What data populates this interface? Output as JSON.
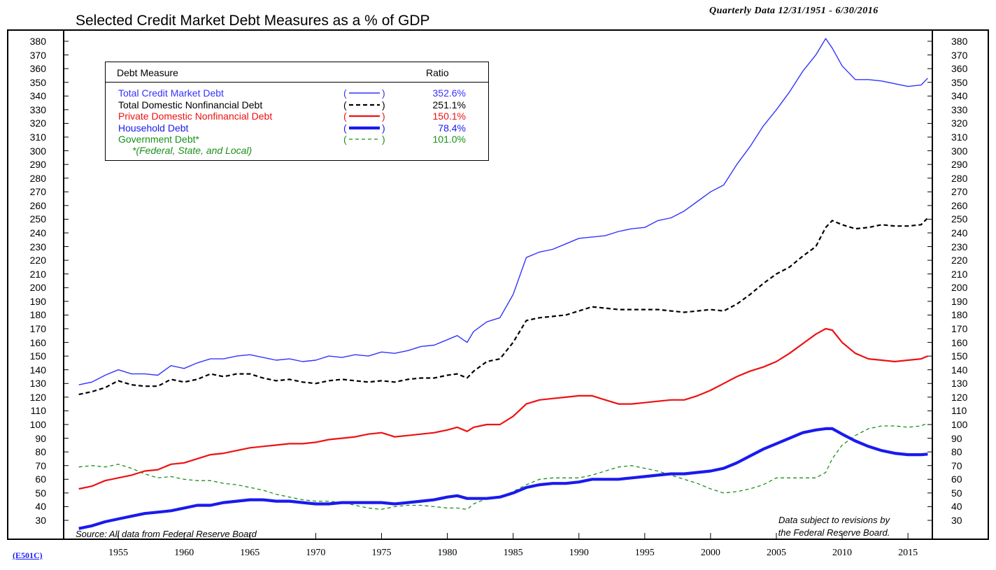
{
  "chart_data": {
    "type": "line",
    "title": "Selected Credit Market Debt Measures as a % of GDP",
    "subtitle": "Quarterly Data 12/31/1951 - 6/30/2016",
    "xlabel": "",
    "ylabel": "",
    "ylim": [
      20,
      390
    ],
    "xlim": [
      1950.9,
      2016.8
    ],
    "yticks": [
      30,
      40,
      50,
      60,
      70,
      80,
      90,
      100,
      110,
      120,
      130,
      140,
      150,
      160,
      170,
      180,
      190,
      200,
      210,
      220,
      230,
      240,
      250,
      260,
      270,
      280,
      290,
      300,
      310,
      320,
      330,
      340,
      350,
      360,
      370,
      380
    ],
    "xticks": [
      1955,
      1960,
      1965,
      1970,
      1975,
      1980,
      1985,
      1990,
      1995,
      2000,
      2005,
      2010,
      2015
    ],
    "grid": false,
    "legend_position": "top-left",
    "legend_header": {
      "measure": "Debt Measure",
      "ratio": "Ratio"
    },
    "legend_note": "*(Federal, State, and Local)",
    "series": [
      {
        "name": "Total Credit Market Debt",
        "color": "#3333ff",
        "style": "solid-thin",
        "ratio": "352.6%",
        "x": [
          1952,
          1953,
          1954,
          1955,
          1956,
          1957,
          1958,
          1959,
          1960,
          1961,
          1962,
          1963,
          1964,
          1965,
          1966,
          1967,
          1968,
          1969,
          1970,
          1971,
          1972,
          1973,
          1974,
          1975,
          1976,
          1977,
          1978,
          1979,
          1980,
          1980.75,
          1981.5,
          1982,
          1983,
          1984,
          1985,
          1986,
          1987,
          1988,
          1989,
          1990,
          1991,
          1992,
          1993,
          1994,
          1995,
          1996,
          1997,
          1998,
          1999,
          2000,
          2001,
          2002,
          2003,
          2004,
          2005,
          2006,
          2007,
          2008,
          2008.75,
          2009.25,
          2010,
          2011,
          2012,
          2013,
          2014,
          2015,
          2016,
          2016.5
        ],
        "y": [
          129,
          131,
          136,
          140,
          137,
          137,
          136,
          143,
          141,
          145,
          148,
          148,
          150,
          151,
          149,
          147,
          148,
          146,
          147,
          150,
          149,
          151,
          150,
          153,
          152,
          154,
          157,
          158,
          162,
          165,
          160,
          168,
          175,
          178,
          195,
          222,
          226,
          228,
          232,
          236,
          237,
          238,
          241,
          243,
          244,
          249,
          251,
          256,
          263,
          270,
          275,
          290,
          303,
          318,
          330,
          343,
          358,
          370,
          382,
          375,
          362,
          352,
          352,
          351,
          349,
          347,
          348,
          353
        ]
      },
      {
        "name": "Total Domestic Nonfinancial Debt",
        "color": "#000000",
        "style": "dashed",
        "ratio": "251.1%",
        "x": [
          1952,
          1953,
          1954,
          1955,
          1956,
          1957,
          1958,
          1959,
          1960,
          1961,
          1962,
          1963,
          1964,
          1965,
          1966,
          1967,
          1968,
          1969,
          1970,
          1971,
          1972,
          1973,
          1974,
          1975,
          1976,
          1977,
          1978,
          1979,
          1980,
          1980.75,
          1981.5,
          1982,
          1983,
          1984,
          1985,
          1986,
          1987,
          1988,
          1989,
          1990,
          1991,
          1992,
          1993,
          1994,
          1995,
          1996,
          1997,
          1998,
          1999,
          2000,
          2001,
          2002,
          2003,
          2004,
          2005,
          2006,
          2007,
          2008,
          2008.75,
          2009.25,
          2010,
          2011,
          2012,
          2013,
          2014,
          2015,
          2016,
          2016.5
        ],
        "y": [
          122,
          124,
          127,
          132,
          129,
          128,
          128,
          133,
          131,
          133,
          137,
          135,
          137,
          137,
          134,
          132,
          133,
          131,
          130,
          132,
          133,
          132,
          131,
          132,
          131,
          133,
          134,
          134,
          136,
          137,
          134,
          139,
          146,
          148,
          160,
          176,
          178,
          179,
          180,
          183,
          186,
          185,
          184,
          184,
          184,
          184,
          183,
          182,
          183,
          184,
          183,
          188,
          195,
          203,
          210,
          215,
          223,
          230,
          244,
          249,
          246,
          243,
          244,
          246,
          245,
          245,
          246,
          251
        ]
      },
      {
        "name": "Private Domestic Nonfinancial Debt",
        "color": "#ee1111",
        "style": "solid",
        "ratio": "150.1%",
        "x": [
          1952,
          1953,
          1954,
          1955,
          1956,
          1957,
          1958,
          1959,
          1960,
          1961,
          1962,
          1963,
          1964,
          1965,
          1966,
          1967,
          1968,
          1969,
          1970,
          1971,
          1972,
          1973,
          1974,
          1975,
          1976,
          1977,
          1978,
          1979,
          1980,
          1980.75,
          1981.5,
          1982,
          1983,
          1984,
          1985,
          1986,
          1987,
          1988,
          1989,
          1990,
          1991,
          1992,
          1993,
          1994,
          1995,
          1996,
          1997,
          1998,
          1999,
          2000,
          2001,
          2002,
          2003,
          2004,
          2005,
          2006,
          2007,
          2008,
          2008.75,
          2009.25,
          2010,
          2011,
          2012,
          2013,
          2014,
          2015,
          2016,
          2016.5
        ],
        "y": [
          53,
          55,
          59,
          61,
          63,
          66,
          67,
          71,
          72,
          75,
          78,
          79,
          81,
          83,
          84,
          85,
          86,
          86,
          87,
          89,
          90,
          91,
          93,
          94,
          91,
          92,
          93,
          94,
          96,
          98,
          95,
          98,
          100,
          100,
          106,
          115,
          118,
          119,
          120,
          121,
          121,
          118,
          115,
          115,
          116,
          117,
          118,
          118,
          121,
          125,
          130,
          135,
          139,
          142,
          146,
          152,
          159,
          166,
          170,
          169,
          160,
          152,
          148,
          147,
          146,
          147,
          148,
          150
        ]
      },
      {
        "name": "Household Debt",
        "color": "#1a1aee",
        "style": "solid-thick",
        "ratio": "78.4%",
        "x": [
          1952,
          1953,
          1954,
          1955,
          1956,
          1957,
          1958,
          1959,
          1960,
          1961,
          1962,
          1963,
          1964,
          1965,
          1966,
          1967,
          1968,
          1969,
          1970,
          1971,
          1972,
          1973,
          1974,
          1975,
          1976,
          1977,
          1978,
          1979,
          1980,
          1980.75,
          1981.5,
          1982,
          1983,
          1984,
          1985,
          1986,
          1987,
          1988,
          1989,
          1990,
          1991,
          1992,
          1993,
          1994,
          1995,
          1996,
          1997,
          1998,
          1999,
          2000,
          2001,
          2002,
          2003,
          2004,
          2005,
          2006,
          2007,
          2008,
          2008.75,
          2009.25,
          2010,
          2011,
          2012,
          2013,
          2014,
          2015,
          2016,
          2016.5
        ],
        "y": [
          24,
          26,
          29,
          31,
          33,
          35,
          36,
          37,
          39,
          41,
          41,
          43,
          44,
          45,
          45,
          44,
          44,
          43,
          42,
          42,
          43,
          43,
          43,
          43,
          42,
          43,
          44,
          45,
          47,
          48,
          46,
          46,
          46,
          47,
          50,
          54,
          56,
          57,
          57,
          58,
          60,
          60,
          60,
          61,
          62,
          63,
          64,
          64,
          65,
          66,
          68,
          72,
          77,
          82,
          86,
          90,
          94,
          96,
          97,
          97,
          93,
          88,
          84,
          81,
          79,
          78,
          78,
          78.4
        ]
      },
      {
        "name": "Government Debt*",
        "color": "#1a8f1a",
        "style": "dashed-thin",
        "ratio": "101.0%",
        "x": [
          1952,
          1953,
          1954,
          1955,
          1956,
          1957,
          1958,
          1959,
          1960,
          1961,
          1962,
          1963,
          1964,
          1965,
          1966,
          1967,
          1968,
          1969,
          1970,
          1971,
          1972,
          1973,
          1974,
          1975,
          1976,
          1977,
          1978,
          1979,
          1980,
          1980.75,
          1981.5,
          1982,
          1983,
          1984,
          1985,
          1986,
          1987,
          1988,
          1989,
          1990,
          1991,
          1992,
          1993,
          1994,
          1995,
          1996,
          1997,
          1998,
          1999,
          2000,
          2001,
          2002,
          2003,
          2004,
          2005,
          2006,
          2007,
          2008,
          2008.75,
          2009.25,
          2010,
          2011,
          2012,
          2013,
          2014,
          2015,
          2016,
          2016.5
        ],
        "y": [
          69,
          70,
          69,
          71,
          68,
          64,
          61,
          62,
          60,
          59,
          59,
          57,
          56,
          54,
          52,
          49,
          47,
          45,
          44,
          44,
          43,
          41,
          39,
          38,
          40,
          41,
          41,
          40,
          39,
          39,
          38,
          42,
          46,
          47,
          51,
          56,
          60,
          61,
          61,
          61,
          63,
          66,
          69,
          70,
          68,
          66,
          63,
          60,
          57,
          53,
          50,
          51,
          53,
          56,
          61,
          61,
          61,
          61,
          65,
          75,
          85,
          92,
          97,
          99,
          99,
          98,
          99,
          101
        ]
      }
    ],
    "source_note": "Source: All data from Federal Reserve Board",
    "revision_note": [
      "Data subject to revisions by",
      "the Federal Reserve Board."
    ]
  },
  "footer": {
    "code_link": "(E501C)"
  }
}
